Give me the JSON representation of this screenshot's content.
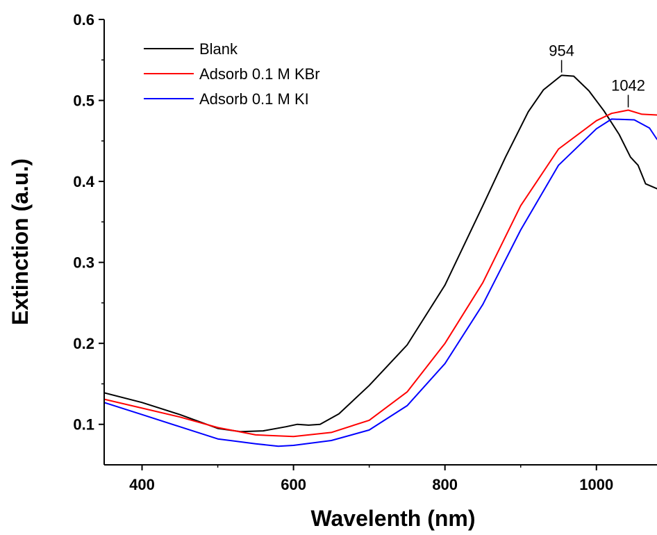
{
  "chart_data": {
    "type": "line",
    "xlabel": "Wavelenth (nm)",
    "ylabel": "Extinction (a.u.)",
    "xlim": [
      350,
      1080
    ],
    "ylim": [
      0.05,
      0.6
    ],
    "xticks": [
      400,
      600,
      800,
      1000
    ],
    "yticks": [
      0.1,
      0.2,
      0.3,
      0.4,
      0.5,
      0.6
    ],
    "xtick_labels": [
      "400",
      "600",
      "800",
      "1000"
    ],
    "ytick_labels": [
      "0.1",
      "0.2",
      "0.3",
      "0.4",
      "0.5",
      "0.6"
    ],
    "grid": false,
    "legend_position": "top-left",
    "series": [
      {
        "name": "Blank",
        "color": "#000000",
        "points": [
          [
            350,
            0.139
          ],
          [
            400,
            0.127
          ],
          [
            450,
            0.112
          ],
          [
            500,
            0.095
          ],
          [
            530,
            0.091
          ],
          [
            560,
            0.092
          ],
          [
            590,
            0.097
          ],
          [
            605,
            0.1
          ],
          [
            620,
            0.099
          ],
          [
            635,
            0.1
          ],
          [
            660,
            0.113
          ],
          [
            700,
            0.148
          ],
          [
            750,
            0.198
          ],
          [
            800,
            0.272
          ],
          [
            850,
            0.37
          ],
          [
            880,
            0.43
          ],
          [
            910,
            0.486
          ],
          [
            930,
            0.513
          ],
          [
            954,
            0.531
          ],
          [
            970,
            0.53
          ],
          [
            990,
            0.512
          ],
          [
            1010,
            0.487
          ],
          [
            1030,
            0.458
          ],
          [
            1045,
            0.43
          ],
          [
            1055,
            0.42
          ],
          [
            1065,
            0.397
          ],
          [
            1080,
            0.391
          ]
        ]
      },
      {
        "name": "Adsorb 0.1 M KBr",
        "color": "#ff0000",
        "points": [
          [
            350,
            0.131
          ],
          [
            400,
            0.12
          ],
          [
            450,
            0.109
          ],
          [
            500,
            0.096
          ],
          [
            550,
            0.087
          ],
          [
            600,
            0.085
          ],
          [
            650,
            0.09
          ],
          [
            700,
            0.105
          ],
          [
            750,
            0.14
          ],
          [
            800,
            0.2
          ],
          [
            850,
            0.275
          ],
          [
            900,
            0.37
          ],
          [
            950,
            0.44
          ],
          [
            1000,
            0.475
          ],
          [
            1020,
            0.484
          ],
          [
            1042,
            0.488
          ],
          [
            1060,
            0.483
          ],
          [
            1080,
            0.482
          ]
        ]
      },
      {
        "name": "Adsorb 0.1 M KI",
        "color": "#0000ff",
        "points": [
          [
            350,
            0.127
          ],
          [
            400,
            0.112
          ],
          [
            450,
            0.097
          ],
          [
            500,
            0.082
          ],
          [
            550,
            0.076
          ],
          [
            580,
            0.073
          ],
          [
            600,
            0.074
          ],
          [
            650,
            0.08
          ],
          [
            700,
            0.093
          ],
          [
            750,
            0.123
          ],
          [
            800,
            0.175
          ],
          [
            850,
            0.248
          ],
          [
            900,
            0.34
          ],
          [
            950,
            0.42
          ],
          [
            1000,
            0.465
          ],
          [
            1020,
            0.477
          ],
          [
            1050,
            0.476
          ],
          [
            1070,
            0.466
          ],
          [
            1080,
            0.452
          ]
        ]
      }
    ],
    "annotations": [
      {
        "text": "954",
        "x": 954,
        "y": 0.531
      },
      {
        "text": "1042",
        "x": 1042,
        "y": 0.488
      }
    ]
  }
}
